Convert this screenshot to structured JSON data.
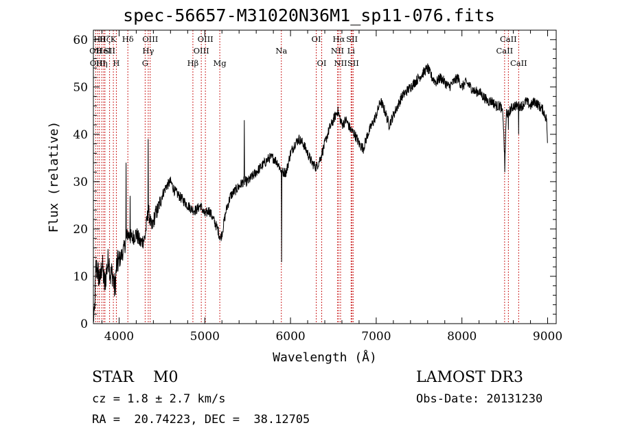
{
  "title": "spec-56657-M31020N36M1_sp11-076.fits",
  "info": {
    "class_label": "STAR",
    "subclass": "M0",
    "cz": "cz = 1.8 ± 2.7 km/s",
    "radec": "RA =  20.74223, DEC =  38.12705",
    "survey": "LAMOST DR3",
    "obs_date": "Obs-Date: 20131230"
  },
  "chart_data": {
    "type": "line",
    "title": "spec-56657-M31020N36M1_sp11-076.fits",
    "xlabel": "Wavelength (Å)",
    "ylabel": "Flux (relative)",
    "xlim": [
      3700,
      9100
    ],
    "ylim": [
      0,
      62
    ],
    "x_ticks": [
      4000,
      5000,
      6000,
      7000,
      8000,
      9000
    ],
    "y_ticks": [
      0,
      10,
      20,
      30,
      40,
      50,
      60
    ],
    "grid": false,
    "line_color": "#000000",
    "marker_color": "#cc2222",
    "spectrum_keypoints": [
      [
        3700,
        2
      ],
      [
        3710,
        0.5
      ],
      [
        3730,
        12
      ],
      [
        3750,
        11
      ],
      [
        3780,
        9
      ],
      [
        3800,
        13
      ],
      [
        3830,
        8
      ],
      [
        3860,
        12
      ],
      [
        3880,
        14
      ],
      [
        3900,
        10
      ],
      [
        3920,
        11
      ],
      [
        3950,
        7
      ],
      [
        3970,
        12
      ],
      [
        3990,
        13
      ],
      [
        4020,
        14
      ],
      [
        4060,
        16
      ],
      [
        4100,
        19
      ],
      [
        4150,
        18
      ],
      [
        4200,
        19
      ],
      [
        4250,
        17
      ],
      [
        4300,
        18
      ],
      [
        4340,
        24
      ],
      [
        4380,
        20
      ],
      [
        4420,
        23
      ],
      [
        4450,
        24
      ],
      [
        4500,
        27
      ],
      [
        4550,
        29
      ],
      [
        4600,
        30
      ],
      [
        4650,
        28
      ],
      [
        4700,
        27
      ],
      [
        4750,
        26
      ],
      [
        4800,
        25
      ],
      [
        4860,
        24
      ],
      [
        4900,
        24
      ],
      [
        4950,
        25
      ],
      [
        5000,
        23
      ],
      [
        5050,
        24
      ],
      [
        5100,
        22
      ],
      [
        5150,
        20
      ],
      [
        5180,
        18
      ],
      [
        5200,
        19
      ],
      [
        5250,
        24
      ],
      [
        5300,
        27
      ],
      [
        5350,
        28
      ],
      [
        5400,
        29
      ],
      [
        5450,
        30
      ],
      [
        5500,
        30
      ],
      [
        5550,
        31
      ],
      [
        5600,
        32
      ],
      [
        5650,
        33
      ],
      [
        5700,
        34
      ],
      [
        5750,
        35
      ],
      [
        5800,
        35
      ],
      [
        5850,
        34
      ],
      [
        5900,
        32
      ],
      [
        5950,
        32
      ],
      [
        6000,
        36
      ],
      [
        6050,
        38
      ],
      [
        6100,
        39
      ],
      [
        6150,
        38
      ],
      [
        6200,
        36
      ],
      [
        6250,
        34
      ],
      [
        6300,
        33
      ],
      [
        6350,
        35
      ],
      [
        6400,
        38
      ],
      [
        6450,
        41
      ],
      [
        6500,
        43
      ],
      [
        6550,
        45
      ],
      [
        6600,
        42
      ],
      [
        6650,
        43
      ],
      [
        6700,
        41
      ],
      [
        6750,
        40
      ],
      [
        6800,
        38
      ],
      [
        6850,
        37
      ],
      [
        6900,
        40
      ],
      [
        6950,
        42
      ],
      [
        7000,
        44
      ],
      [
        7050,
        47
      ],
      [
        7100,
        45
      ],
      [
        7150,
        42
      ],
      [
        7200,
        44
      ],
      [
        7250,
        46
      ],
      [
        7300,
        48
      ],
      [
        7350,
        49
      ],
      [
        7400,
        50
      ],
      [
        7450,
        51
      ],
      [
        7500,
        52
      ],
      [
        7550,
        53
      ],
      [
        7600,
        54
      ],
      [
        7650,
        52
      ],
      [
        7700,
        51
      ],
      [
        7750,
        52
      ],
      [
        7800,
        51
      ],
      [
        7850,
        50
      ],
      [
        7900,
        51
      ],
      [
        7950,
        52
      ],
      [
        8000,
        50
      ],
      [
        8050,
        51
      ],
      [
        8100,
        50
      ],
      [
        8150,
        49
      ],
      [
        8200,
        49
      ],
      [
        8250,
        48
      ],
      [
        8300,
        47
      ],
      [
        8350,
        47
      ],
      [
        8400,
        46
      ],
      [
        8450,
        46
      ],
      [
        8480,
        44
      ],
      [
        8500,
        34
      ],
      [
        8520,
        45
      ],
      [
        8540,
        44
      ],
      [
        8560,
        45
      ],
      [
        8600,
        46
      ],
      [
        8650,
        46
      ],
      [
        8700,
        46
      ],
      [
        8750,
        47
      ],
      [
        8800,
        46
      ],
      [
        8850,
        47
      ],
      [
        8900,
        46
      ],
      [
        8950,
        45
      ],
      [
        8990,
        43
      ],
      [
        9000,
        36
      ]
    ],
    "spectrum_spikes": [
      [
        4340,
        39
      ],
      [
        4130,
        27
      ],
      [
        4080,
        34
      ],
      [
        5460,
        43
      ],
      [
        5895,
        13
      ],
      [
        8499,
        32
      ],
      [
        8542,
        41
      ],
      [
        8662,
        40
      ]
    ],
    "line_markers": [
      {
        "x": 3727,
        "label": "OII",
        "row": 1
      },
      {
        "x": 3750,
        "label": "OIII",
        "row": 2
      },
      {
        "x": 3770,
        "label": "Hθ",
        "row": 0
      },
      {
        "x": 3798,
        "label": "Hη",
        "row": 2
      },
      {
        "x": 3820,
        "label": "HeI",
        "row": 1
      },
      {
        "x": 3835,
        "label": "Hζ",
        "row": 0
      },
      {
        "x": 3889,
        "label": "SII",
        "row": 1
      },
      {
        "x": 3933,
        "label": "K",
        "row": 0
      },
      {
        "x": 3968,
        "label": "H",
        "row": 2
      },
      {
        "x": 4102,
        "label": "Hδ",
        "row": 0
      },
      {
        "x": 4304,
        "label": "G",
        "row": 2
      },
      {
        "x": 4340,
        "label": "Hγ",
        "row": 1
      },
      {
        "x": 4363,
        "label": "OIII",
        "row": 0
      },
      {
        "x": 4861,
        "label": "Hβ",
        "row": 2
      },
      {
        "x": 4959,
        "label": "OIII",
        "row": 1
      },
      {
        "x": 5007,
        "label": "OIII",
        "row": 0
      },
      {
        "x": 5175,
        "label": "Mg",
        "row": 2
      },
      {
        "x": 5893,
        "label": "Na",
        "row": 1
      },
      {
        "x": 6300,
        "label": "OI",
        "row": 0
      },
      {
        "x": 6364,
        "label": "OI",
        "row": 2
      },
      {
        "x": 6548,
        "label": "NII",
        "row": 1
      },
      {
        "x": 6563,
        "label": "Hα",
        "row": 0
      },
      {
        "x": 6584,
        "label": "NII",
        "row": 2
      },
      {
        "x": 6707,
        "label": "Li",
        "row": 1
      },
      {
        "x": 6717,
        "label": "SII",
        "row": 0
      },
      {
        "x": 6731,
        "label": "SII",
        "row": 2
      },
      {
        "x": 8498,
        "label": "CaII",
        "row": 1
      },
      {
        "x": 8542,
        "label": "CaII",
        "row": 0
      },
      {
        "x": 8662,
        "label": "CaII",
        "row": 2
      }
    ]
  }
}
